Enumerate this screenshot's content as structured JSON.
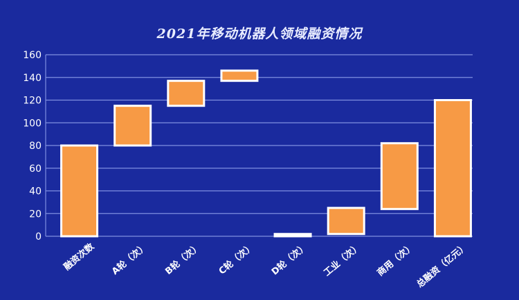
{
  "chart_data": {
    "type": "waterfall",
    "title": "2021年移动机器人领域融资情况",
    "categories": [
      "融资次数",
      "A轮（次）",
      "B轮（次）",
      "C轮（次）",
      "D轮（次）",
      "工业（次）",
      "商用（次）",
      "总融资（亿元）"
    ],
    "series": [
      {
        "base": [
          0,
          80,
          115,
          137,
          0,
          2,
          24,
          0
        ],
        "top": [
          80,
          115,
          137,
          146,
          2,
          25,
          82,
          120
        ]
      }
    ],
    "ylim": [
      0,
      160
    ],
    "yticks": [
      0,
      20,
      40,
      60,
      80,
      100,
      120,
      140,
      160
    ],
    "grid": true,
    "legend": "none",
    "colors": {
      "background": "#1a2a9e",
      "bar": "#f79a45",
      "bar_border": "#ffffff",
      "grid": "#7f8fe0",
      "text": "#ffffff"
    }
  }
}
